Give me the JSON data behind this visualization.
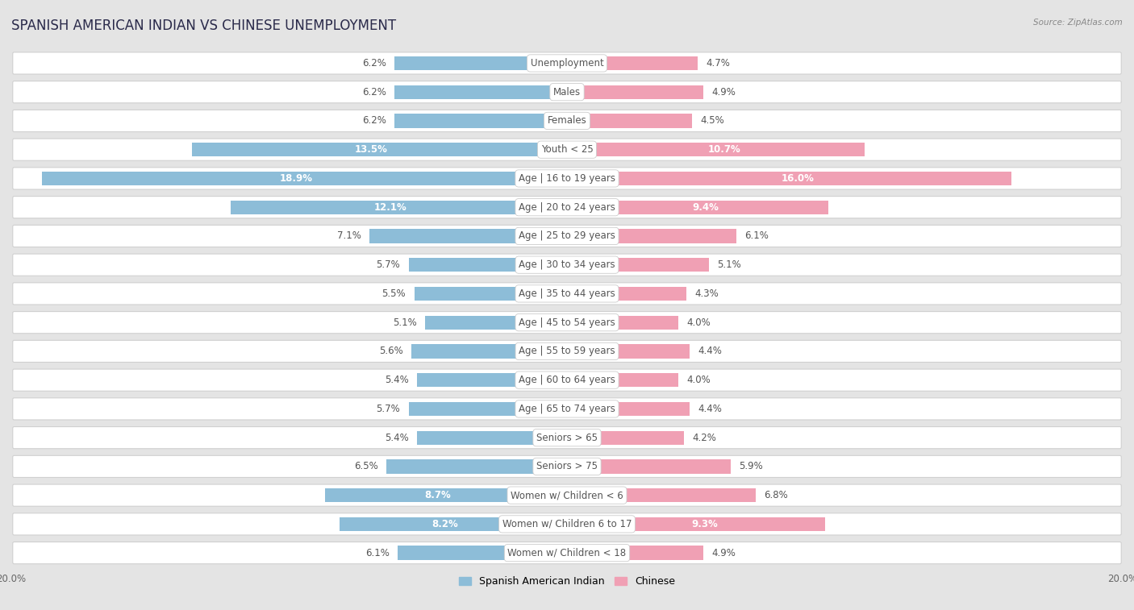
{
  "title": "SPANISH AMERICAN INDIAN VS CHINESE UNEMPLOYMENT",
  "source": "Source: ZipAtlas.com",
  "categories": [
    "Unemployment",
    "Males",
    "Females",
    "Youth < 25",
    "Age | 16 to 19 years",
    "Age | 20 to 24 years",
    "Age | 25 to 29 years",
    "Age | 30 to 34 years",
    "Age | 35 to 44 years",
    "Age | 45 to 54 years",
    "Age | 55 to 59 years",
    "Age | 60 to 64 years",
    "Age | 65 to 74 years",
    "Seniors > 65",
    "Seniors > 75",
    "Women w/ Children < 6",
    "Women w/ Children 6 to 17",
    "Women w/ Children < 18"
  ],
  "left_values": [
    6.2,
    6.2,
    6.2,
    13.5,
    18.9,
    12.1,
    7.1,
    5.7,
    5.5,
    5.1,
    5.6,
    5.4,
    5.7,
    5.4,
    6.5,
    8.7,
    8.2,
    6.1
  ],
  "right_values": [
    4.7,
    4.9,
    4.5,
    10.7,
    16.0,
    9.4,
    6.1,
    5.1,
    4.3,
    4.0,
    4.4,
    4.0,
    4.4,
    4.2,
    5.9,
    6.8,
    9.3,
    4.9
  ],
  "left_color": "#8dbdd8",
  "right_color": "#f0a0b4",
  "left_label": "Spanish American Indian",
  "right_label": "Chinese",
  "axis_max": 20.0,
  "background_color": "#e4e4e4",
  "row_bg_color": "#ffffff",
  "row_border_color": "#d0d0d0",
  "title_color": "#2a2a4a",
  "label_color": "#555555",
  "value_color_outside": "#555555",
  "value_color_inside": "#ffffff",
  "title_fontsize": 12,
  "label_fontsize": 8.5,
  "value_fontsize": 8.5,
  "axis_label_fontsize": 8.5,
  "inside_threshold": 8.0
}
